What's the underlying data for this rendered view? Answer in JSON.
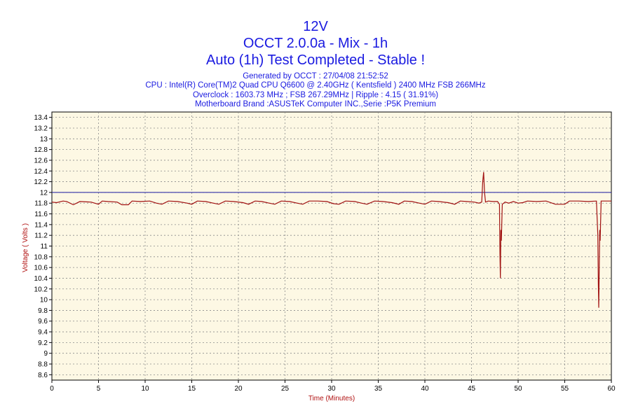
{
  "chart_data": {
    "type": "line",
    "title": "12V",
    "subtitle_lines": [
      "OCCT 2.0.0a - Mix - 1h",
      "Auto (1h) Test Completed - Stable !"
    ],
    "info_lines": [
      "Generated by OCCT : 27/04/08 21:52:52",
      "CPU : Intel(R) Core(TM)2 Quad CPU Q6600 @ 2.40GHz ( Kentsfield ) 2400 MHz FSB 266MHz",
      "Overclock : 1603.73 MHz ; FSB 267.29MHz | Ripple : 4.15 ( 31.91%)",
      "Motherboard Brand :ASUSTeK Computer INC.,Serie :P5K Premium"
    ],
    "xlabel": "Time (Minutes)",
    "ylabel": "Voltage ( Volts )",
    "xlim": [
      0,
      60
    ],
    "ylim": [
      8.5,
      13.5
    ],
    "x_ticks": [
      0,
      5,
      10,
      15,
      20,
      25,
      30,
      35,
      40,
      45,
      50,
      55,
      60
    ],
    "y_ticks": [
      8.6,
      8.8,
      9,
      9.2,
      9.4,
      9.6,
      9.8,
      10,
      10.2,
      10.4,
      10.6,
      10.8,
      11,
      11.2,
      11.4,
      11.6,
      11.8,
      12,
      12.2,
      12.4,
      12.6,
      12.8,
      13,
      13.2,
      13.4
    ],
    "grid": true,
    "reference_line": {
      "y": 12,
      "color": "#1a1aa0"
    },
    "series": [
      {
        "color": "#a01010",
        "points": [
          [
            0,
            11.82
          ],
          [
            0.5,
            11.81
          ],
          [
            1.2,
            11.84
          ],
          [
            1.6,
            11.83
          ],
          [
            2.3,
            11.77
          ],
          [
            3.0,
            11.83
          ],
          [
            4.2,
            11.82
          ],
          [
            5.0,
            11.78
          ],
          [
            5.4,
            11.84
          ],
          [
            6.0,
            11.83
          ],
          [
            7.0,
            11.82
          ],
          [
            7.5,
            11.77
          ],
          [
            8.2,
            11.77
          ],
          [
            8.6,
            11.84
          ],
          [
            9.5,
            11.83
          ],
          [
            10.5,
            11.84
          ],
          [
            11.2,
            11.8
          ],
          [
            11.8,
            11.78
          ],
          [
            12.5,
            11.84
          ],
          [
            13.5,
            11.83
          ],
          [
            14.5,
            11.8
          ],
          [
            15.0,
            11.78
          ],
          [
            15.6,
            11.84
          ],
          [
            16.5,
            11.83
          ],
          [
            17.3,
            11.8
          ],
          [
            17.9,
            11.78
          ],
          [
            18.6,
            11.84
          ],
          [
            19.5,
            11.83
          ],
          [
            20.5,
            11.81
          ],
          [
            21.1,
            11.78
          ],
          [
            21.8,
            11.84
          ],
          [
            22.5,
            11.83
          ],
          [
            23.3,
            11.8
          ],
          [
            23.9,
            11.78
          ],
          [
            24.6,
            11.84
          ],
          [
            25.5,
            11.83
          ],
          [
            26.3,
            11.8
          ],
          [
            26.9,
            11.78
          ],
          [
            27.6,
            11.84
          ],
          [
            28.5,
            11.84
          ],
          [
            29.5,
            11.83
          ],
          [
            30.2,
            11.79
          ],
          [
            30.8,
            11.78
          ],
          [
            31.5,
            11.84
          ],
          [
            32.5,
            11.83
          ],
          [
            33.2,
            11.8
          ],
          [
            33.8,
            11.78
          ],
          [
            34.6,
            11.84
          ],
          [
            35.5,
            11.83
          ],
          [
            36.5,
            11.81
          ],
          [
            37.2,
            11.78
          ],
          [
            37.8,
            11.84
          ],
          [
            38.6,
            11.83
          ],
          [
            39.4,
            11.8
          ],
          [
            40.0,
            11.78
          ],
          [
            40.7,
            11.84
          ],
          [
            41.5,
            11.83
          ],
          [
            42.5,
            11.81
          ],
          [
            43.2,
            11.78
          ],
          [
            43.8,
            11.84
          ],
          [
            44.5,
            11.83
          ],
          [
            45.3,
            11.82
          ],
          [
            45.8,
            11.8
          ],
          [
            46.1,
            11.82
          ],
          [
            46.2,
            12.2
          ],
          [
            46.3,
            12.38
          ],
          [
            46.4,
            12.0
          ],
          [
            46.5,
            11.82
          ],
          [
            46.8,
            11.84
          ],
          [
            47.3,
            11.83
          ],
          [
            47.8,
            11.83
          ],
          [
            48.0,
            11.78
          ],
          [
            48.05,
            10.85
          ],
          [
            48.1,
            10.4
          ],
          [
            48.15,
            11.3
          ],
          [
            48.2,
            11.1
          ],
          [
            48.3,
            11.78
          ],
          [
            48.6,
            11.82
          ],
          [
            49.0,
            11.8
          ],
          [
            49.5,
            11.83
          ],
          [
            50.0,
            11.8
          ],
          [
            50.5,
            11.81
          ],
          [
            51.0,
            11.84
          ],
          [
            52.0,
            11.83
          ],
          [
            53.0,
            11.84
          ],
          [
            54.0,
            11.78
          ],
          [
            55.0,
            11.78
          ],
          [
            55.5,
            11.84
          ],
          [
            56.5,
            11.84
          ],
          [
            57.5,
            11.83
          ],
          [
            58.4,
            11.84
          ],
          [
            58.55,
            11.2
          ],
          [
            58.6,
            10.3
          ],
          [
            58.65,
            9.85
          ],
          [
            58.7,
            10.6
          ],
          [
            58.75,
            11.3
          ],
          [
            58.8,
            11.1
          ],
          [
            58.9,
            11.84
          ],
          [
            59.3,
            11.84
          ],
          [
            60.0,
            11.84
          ]
        ]
      }
    ]
  }
}
